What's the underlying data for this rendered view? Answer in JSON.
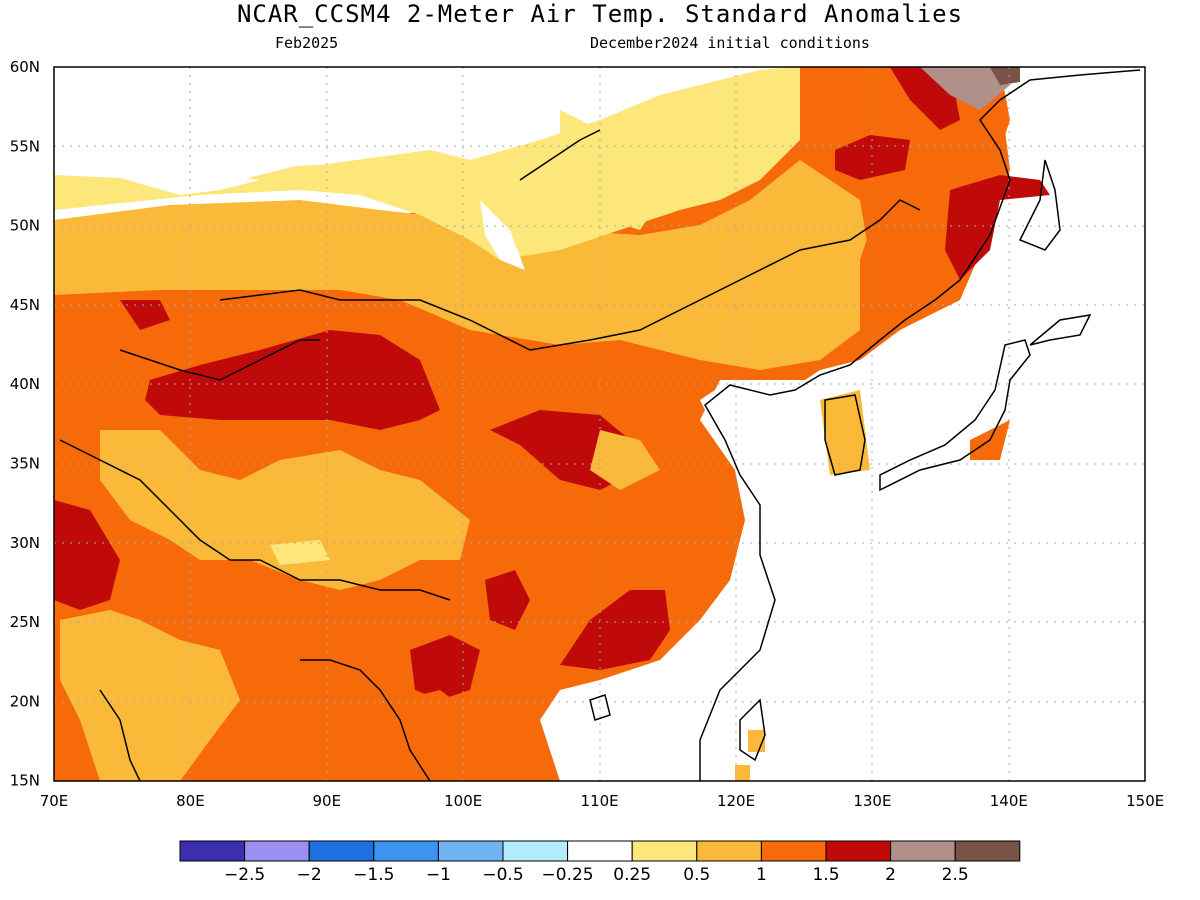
{
  "title": "NCAR_CCSM4 2-Meter Air Temp. Standard Anomalies",
  "subtitle_left": "Feb2025",
  "subtitle_right": "December2024 initial conditions",
  "lat_labels": [
    "60N",
    "55N",
    "50N",
    "45N",
    "40N",
    "35N",
    "30N",
    "25N",
    "20N",
    "15N"
  ],
  "lon_labels": [
    "70E",
    "80E",
    "90E",
    "100E",
    "110E",
    "120E",
    "130E",
    "140E",
    "150E"
  ],
  "colorbar": {
    "colors": [
      "#3b2fb0",
      "#9b8ff0",
      "#1f6fe0",
      "#3d93f0",
      "#6fb3f0",
      "#b5ecfb",
      "#ffffff",
      "#fde67a",
      "#fbb93a",
      "#f66a0a",
      "#c00a0a",
      "#b09088",
      "#7a5248"
    ],
    "labels": [
      "-2.5",
      "-2",
      "-1.5",
      "-1",
      "-0.5",
      "-0.25",
      "0.25",
      "0.5",
      "1",
      "1.5",
      "2",
      "2.5"
    ]
  }
}
